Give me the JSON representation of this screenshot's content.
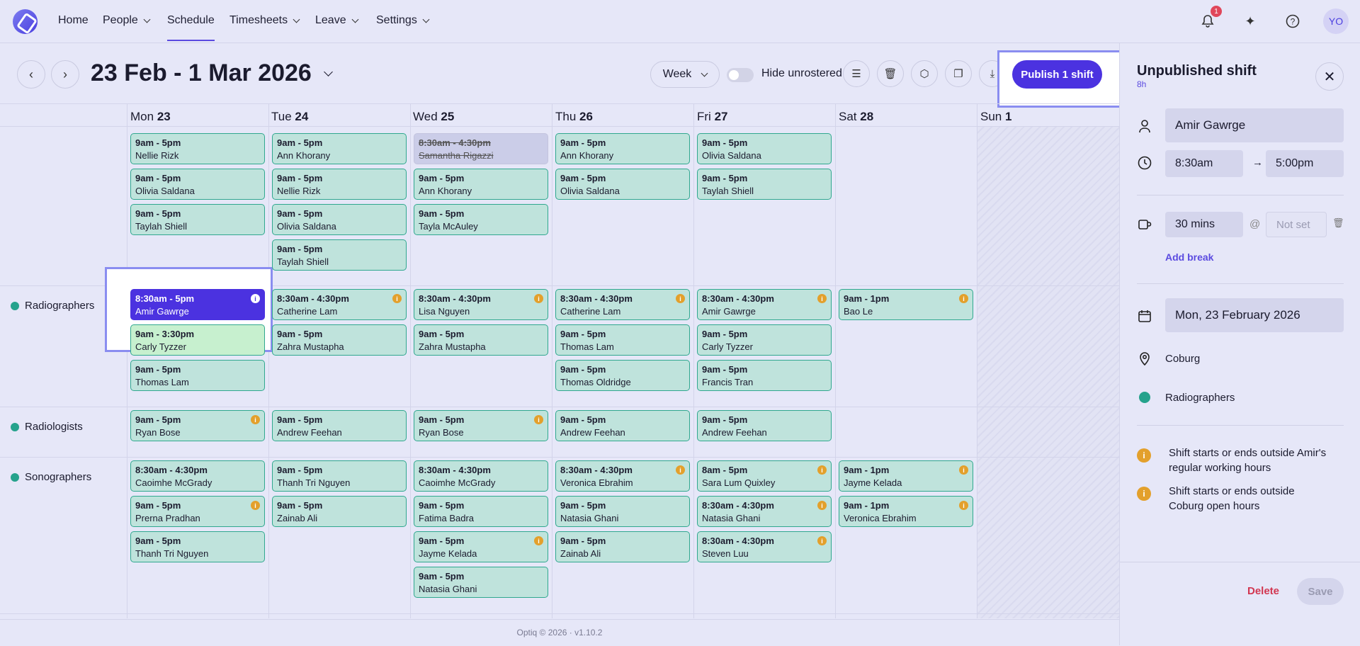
{
  "nav": {
    "items": [
      {
        "label": "Home",
        "dropdown": false
      },
      {
        "label": "People",
        "dropdown": true
      },
      {
        "label": "Schedule",
        "dropdown": false,
        "active": true
      },
      {
        "label": "Timesheets",
        "dropdown": true
      },
      {
        "label": "Leave",
        "dropdown": true
      },
      {
        "label": "Settings",
        "dropdown": true
      }
    ],
    "notification_count": "1",
    "avatar_initials": "YO"
  },
  "toolbar": {
    "date_range": "23 Feb - 1 Mar 2026",
    "view": "Week",
    "hide_unrostered_label": "Hide unrostered",
    "publish_label": "Publish 1 shift"
  },
  "days": [
    {
      "name": "Mon",
      "num": "23"
    },
    {
      "name": "Tue",
      "num": "24"
    },
    {
      "name": "Wed",
      "num": "25"
    },
    {
      "name": "Thu",
      "num": "26"
    },
    {
      "name": "Fri",
      "num": "27"
    },
    {
      "name": "Sat",
      "num": "28"
    },
    {
      "name": "Sun",
      "num": "1"
    }
  ],
  "groups": [
    {
      "name": "Radiographers"
    },
    {
      "name": "Radiologists"
    },
    {
      "name": "Sonographers"
    }
  ],
  "shifts": {
    "top": [
      [
        {
          "time": "9am - 5pm",
          "name": "Nellie Rizk"
        },
        {
          "time": "9am - 5pm",
          "name": "Olivia Saldana"
        },
        {
          "time": "9am - 5pm",
          "name": "Taylah Shiell"
        }
      ],
      [
        {
          "time": "9am - 5pm",
          "name": "Ann Khorany"
        },
        {
          "time": "9am - 5pm",
          "name": "Nellie Rizk"
        },
        {
          "time": "9am - 5pm",
          "name": "Olivia Saldana"
        },
        {
          "time": "9am - 5pm",
          "name": "Taylah Shiell"
        }
      ],
      [
        {
          "time": "8:30am - 4:30pm",
          "name": "Samantha Rigazzi",
          "style": "strike"
        },
        {
          "time": "9am - 5pm",
          "name": "Ann Khorany"
        },
        {
          "time": "9am - 5pm",
          "name": "Tayla McAuley"
        }
      ],
      [
        {
          "time": "9am - 5pm",
          "name": "Ann Khorany"
        },
        {
          "time": "9am - 5pm",
          "name": "Olivia Saldana"
        }
      ],
      [
        {
          "time": "9am - 5pm",
          "name": "Olivia Saldana"
        },
        {
          "time": "9am - 5pm",
          "name": "Taylah Shiell"
        }
      ],
      [],
      []
    ],
    "radiographers": [
      [
        {
          "time": "8:30am - 5pm",
          "name": "Amir Gawrge",
          "style": "sel",
          "info": true
        },
        {
          "time": "9am - 3:30pm",
          "name": "Carly Tyzzer",
          "style": "green"
        },
        {
          "time": "9am - 5pm",
          "name": "Thomas Lam"
        }
      ],
      [
        {
          "time": "8:30am - 4:30pm",
          "name": "Catherine Lam",
          "info": true
        },
        {
          "time": "9am - 5pm",
          "name": "Zahra Mustapha"
        }
      ],
      [
        {
          "time": "8:30am - 4:30pm",
          "name": "Lisa Nguyen",
          "info": true
        },
        {
          "time": "9am - 5pm",
          "name": "Zahra Mustapha"
        }
      ],
      [
        {
          "time": "8:30am - 4:30pm",
          "name": "Catherine Lam",
          "info": true
        },
        {
          "time": "9am - 5pm",
          "name": "Thomas Lam"
        },
        {
          "time": "9am - 5pm",
          "name": "Thomas Oldridge"
        }
      ],
      [
        {
          "time": "8:30am - 4:30pm",
          "name": "Amir Gawrge",
          "info": true
        },
        {
          "time": "9am - 5pm",
          "name": "Carly Tyzzer"
        },
        {
          "time": "9am - 5pm",
          "name": "Francis Tran"
        }
      ],
      [
        {
          "time": "9am - 1pm",
          "name": "Bao Le",
          "info": true
        }
      ],
      []
    ],
    "radiologists": [
      [
        {
          "time": "9am - 5pm",
          "name": "Ryan Bose",
          "info": true
        }
      ],
      [
        {
          "time": "9am - 5pm",
          "name": "Andrew Feehan"
        }
      ],
      [
        {
          "time": "9am - 5pm",
          "name": "Ryan Bose",
          "info": true
        }
      ],
      [
        {
          "time": "9am - 5pm",
          "name": "Andrew Feehan"
        }
      ],
      [
        {
          "time": "9am - 5pm",
          "name": "Andrew Feehan"
        }
      ],
      [],
      []
    ],
    "sonographers": [
      [
        {
          "time": "8:30am - 4:30pm",
          "name": "Caoimhe McGrady"
        },
        {
          "time": "9am - 5pm",
          "name": "Prerna Pradhan",
          "info": true
        },
        {
          "time": "9am - 5pm",
          "name": "Thanh Tri Nguyen"
        }
      ],
      [
        {
          "time": "9am - 5pm",
          "name": "Thanh Tri Nguyen"
        },
        {
          "time": "9am - 5pm",
          "name": "Zainab Ali"
        }
      ],
      [
        {
          "time": "8:30am - 4:30pm",
          "name": "Caoimhe McGrady"
        },
        {
          "time": "9am - 5pm",
          "name": "Fatima Badra"
        },
        {
          "time": "9am - 5pm",
          "name": "Jayme Kelada",
          "info": true
        },
        {
          "time": "9am - 5pm",
          "name": "Natasia Ghani"
        }
      ],
      [
        {
          "time": "8:30am - 4:30pm",
          "name": "Veronica Ebrahim",
          "info": true
        },
        {
          "time": "9am - 5pm",
          "name": "Natasia Ghani"
        },
        {
          "time": "9am - 5pm",
          "name": "Zainab Ali"
        }
      ],
      [
        {
          "time": "8am - 5pm",
          "name": "Sara Lum Quixley",
          "info": true
        },
        {
          "time": "8:30am - 4:30pm",
          "name": "Natasia Ghani",
          "info": true
        },
        {
          "time": "8:30am - 4:30pm",
          "name": "Steven Luu",
          "info": true
        }
      ],
      [
        {
          "time": "9am - 1pm",
          "name": "Jayme Kelada",
          "info": true
        },
        {
          "time": "9am - 1pm",
          "name": "Veronica Ebrahim",
          "info": true
        }
      ],
      []
    ]
  },
  "footer": "Optiq © 2026 · v1.10.2",
  "panel": {
    "title": "Unpublished shift",
    "duration": "8h",
    "employee": "Amir Gawrge",
    "start": "8:30am",
    "end": "5:00pm",
    "break_length": "30 mins",
    "break_at": "@",
    "break_time_placeholder": "Not set",
    "add_break": "Add break",
    "date": "Mon, 23 February 2026",
    "location": "Coburg",
    "role": "Radiographers",
    "warnings": [
      "Shift starts or ends outside Amir's regular working hours",
      "Shift starts or ends outside Coburg open hours"
    ],
    "delete_label": "Delete",
    "save_label": "Save"
  }
}
